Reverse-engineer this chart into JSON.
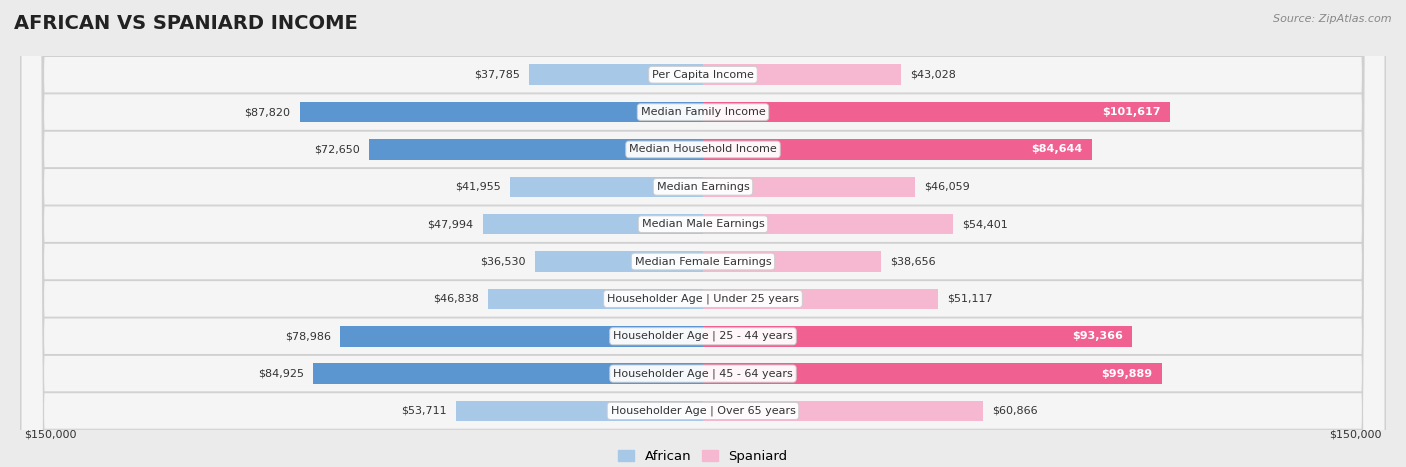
{
  "title": "AFRICAN VS SPANIARD INCOME",
  "source": "Source: ZipAtlas.com",
  "categories": [
    "Per Capita Income",
    "Median Family Income",
    "Median Household Income",
    "Median Earnings",
    "Median Male Earnings",
    "Median Female Earnings",
    "Householder Age | Under 25 years",
    "Householder Age | 25 - 44 years",
    "Householder Age | 45 - 64 years",
    "Householder Age | Over 65 years"
  ],
  "african_values": [
    37785,
    87820,
    72650,
    41955,
    47994,
    36530,
    46838,
    78986,
    84925,
    53711
  ],
  "spaniard_values": [
    43028,
    101617,
    84644,
    46059,
    54401,
    38656,
    51117,
    93366,
    99889,
    60866
  ],
  "african_labels": [
    "$37,785",
    "$87,820",
    "$72,650",
    "$41,955",
    "$47,994",
    "$36,530",
    "$46,838",
    "$78,986",
    "$84,925",
    "$53,711"
  ],
  "spaniard_labels": [
    "$43,028",
    "$101,617",
    "$84,644",
    "$46,059",
    "$54,401",
    "$38,656",
    "$51,117",
    "$93,366",
    "$99,889",
    "$60,866"
  ],
  "african_color_light": "#a8c8e8",
  "african_color_dark": "#5b96d0",
  "spaniard_color_light": "#f5b8d0",
  "spaniard_color_dark": "#f06090",
  "max_value": 150000,
  "bg_color": "#ebebeb",
  "row_bg_light": "#f5f5f5",
  "row_bg_dark": "#e8e8e8",
  "row_border": "#d0d0d0",
  "african_dark_threshold": 70000,
  "spaniard_dark_threshold": 80000,
  "legend_african": "African",
  "legend_spaniard": "Spaniard",
  "xlabel_left": "$150,000",
  "xlabel_right": "$150,000",
  "title_fontsize": 14,
  "label_fontsize": 8,
  "value_fontsize": 8,
  "source_fontsize": 8
}
